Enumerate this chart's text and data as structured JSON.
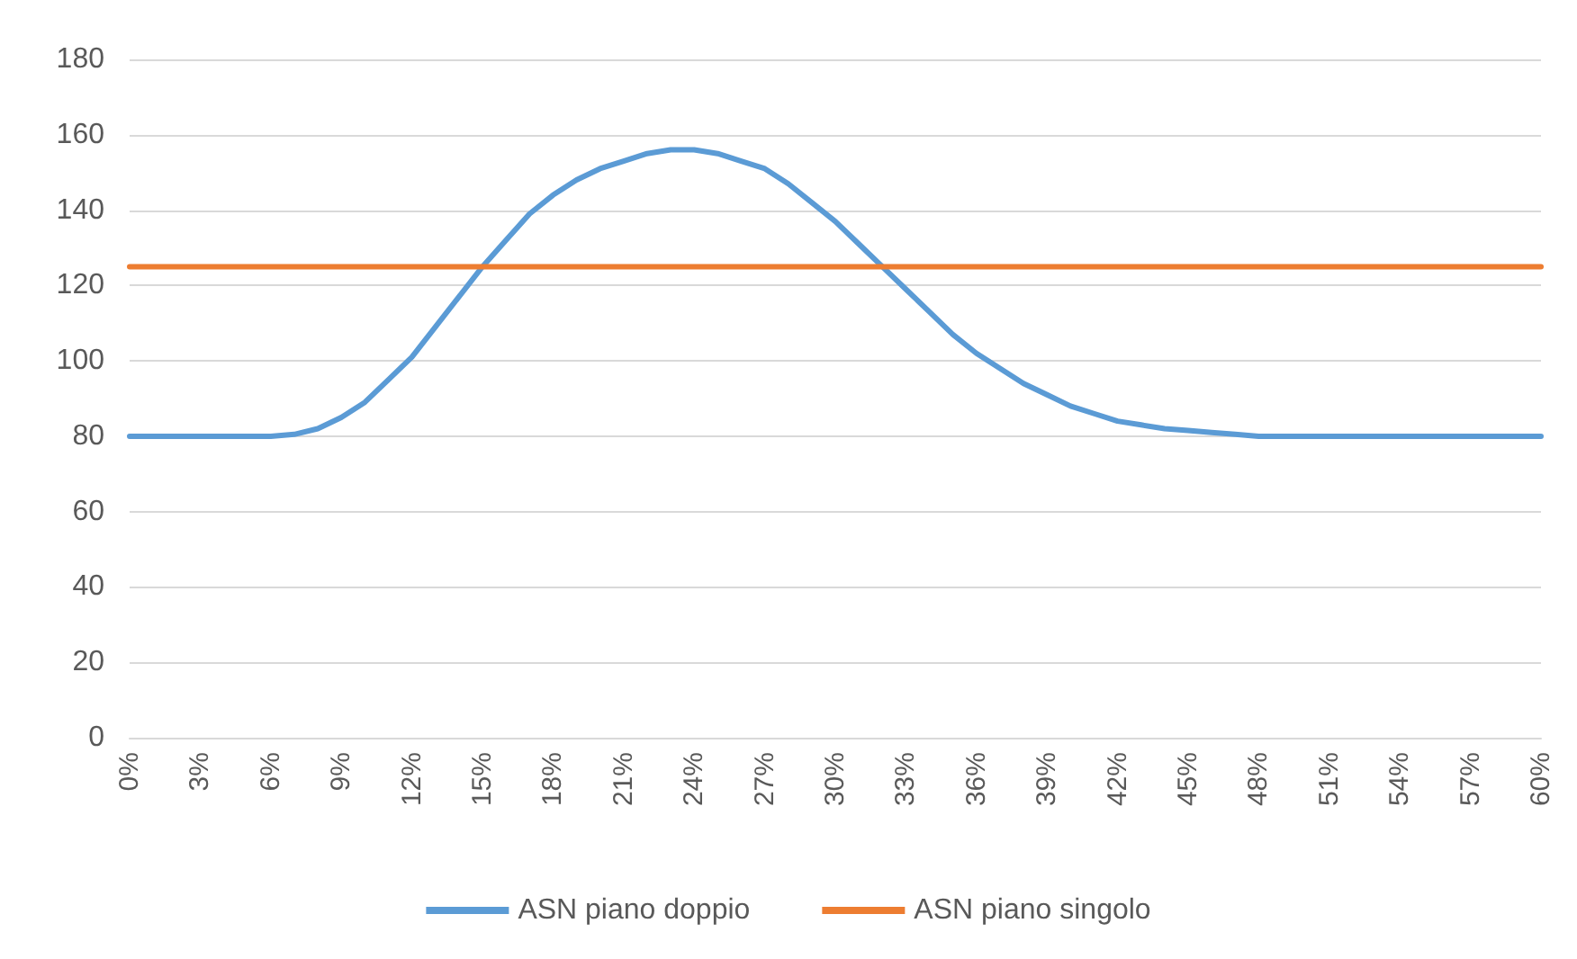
{
  "chart_data": {
    "type": "line",
    "categories": [
      "0%",
      null,
      null,
      "3%",
      null,
      null,
      "6%",
      null,
      null,
      "9%",
      null,
      null,
      "12%",
      null,
      null,
      "15%",
      null,
      null,
      "18%",
      null,
      null,
      "21%",
      null,
      null,
      "24%",
      null,
      null,
      "27%",
      null,
      null,
      "30%",
      null,
      null,
      "33%",
      null,
      null,
      "36%",
      null,
      null,
      "39%",
      null,
      null,
      "42%",
      null,
      null,
      "45%",
      null,
      null,
      "48%",
      null,
      null,
      "51%",
      null,
      null,
      "54%",
      null,
      null,
      "57%",
      null,
      null,
      "60%"
    ],
    "series": [
      {
        "name": "ASN piano doppio",
        "color": "#5b9bd5",
        "values": [
          80,
          80,
          80,
          80,
          80,
          80,
          80,
          80.5,
          82,
          85,
          89,
          95,
          101,
          109,
          117,
          125,
          132,
          139,
          144,
          148,
          151,
          153,
          155,
          156,
          156,
          155,
          153,
          151,
          147,
          142,
          137,
          131,
          125,
          119,
          113,
          107,
          102,
          98,
          94,
          91,
          88,
          86,
          84,
          83,
          82,
          81.5,
          81,
          80.5,
          80,
          80,
          80,
          80,
          80,
          80,
          80,
          80,
          80,
          80,
          80,
          80,
          80
        ]
      },
      {
        "name": "ASN piano singolo",
        "color": "#ed7d31",
        "values": [
          125,
          125,
          125,
          125,
          125,
          125,
          125,
          125,
          125,
          125,
          125,
          125,
          125,
          125,
          125,
          125,
          125,
          125,
          125,
          125,
          125,
          125,
          125,
          125,
          125,
          125,
          125,
          125,
          125,
          125,
          125,
          125,
          125,
          125,
          125,
          125,
          125,
          125,
          125,
          125,
          125,
          125,
          125,
          125,
          125,
          125,
          125,
          125,
          125,
          125,
          125,
          125,
          125,
          125,
          125,
          125,
          125,
          125,
          125,
          125,
          125
        ]
      }
    ],
    "ylim": [
      0,
      180
    ],
    "yticks": [
      0,
      20,
      40,
      60,
      80,
      100,
      120,
      140,
      160,
      180
    ],
    "grid": "y",
    "legend": "bottom",
    "marker": "none",
    "line_style": "solid"
  }
}
